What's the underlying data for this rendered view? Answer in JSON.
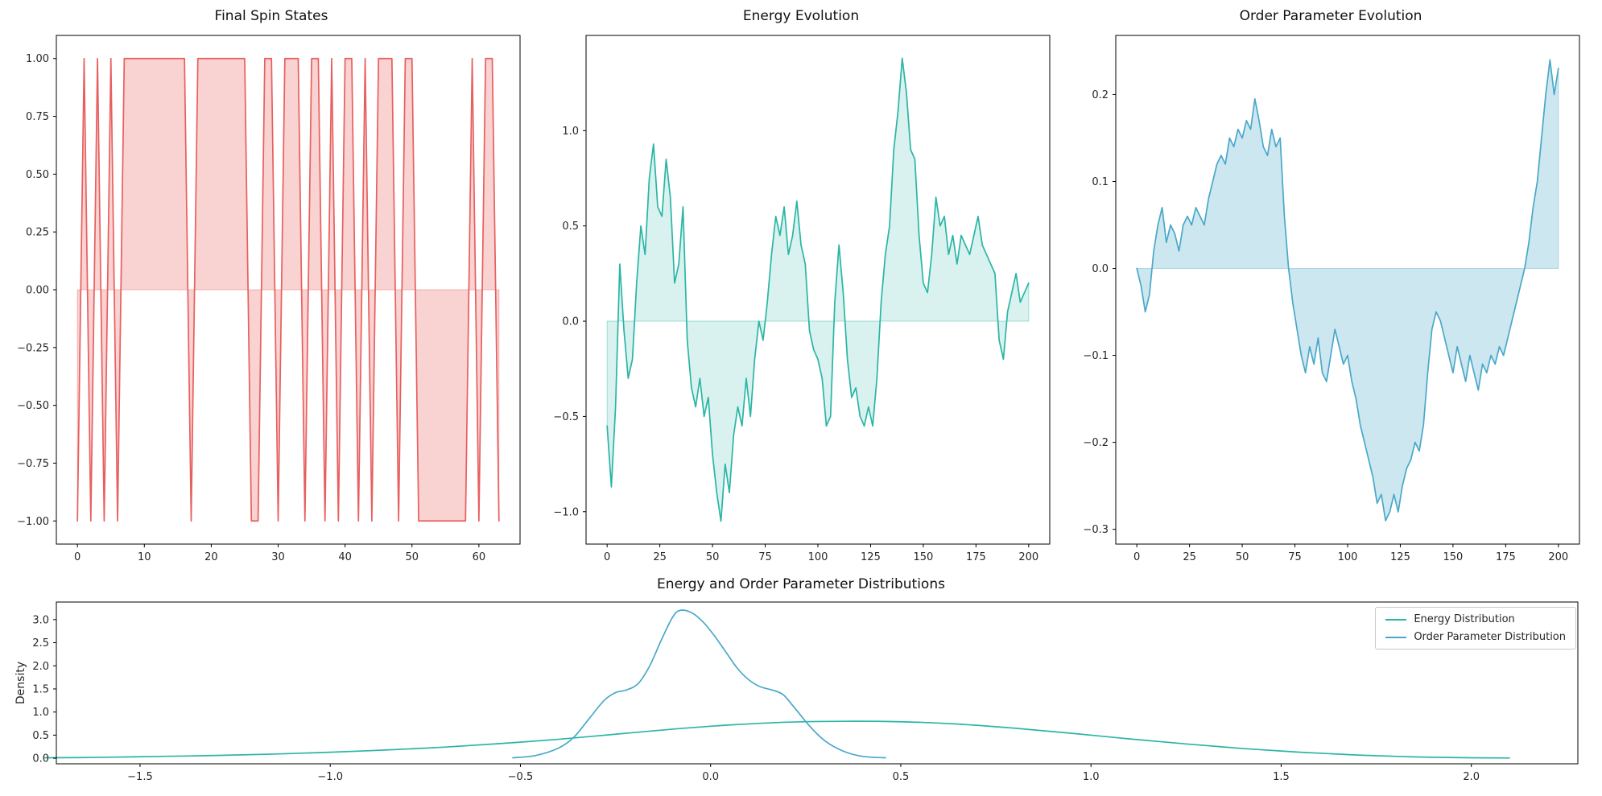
{
  "figure": {
    "background": "#ffffff",
    "text_color": "#262626",
    "spine_color": "#000000"
  },
  "chart_data": [
    {
      "id": "spin",
      "type": "line",
      "title": "Final Spin States",
      "xlim": [
        -3.15,
        66.15
      ],
      "ylim": [
        -1.1,
        1.1
      ],
      "xticks": [
        0,
        10,
        20,
        30,
        40,
        50,
        60
      ],
      "xtick_labels": [
        "0",
        "10",
        "20",
        "30",
        "40",
        "50",
        "60"
      ],
      "yticks": [
        1.0,
        0.75,
        0.5,
        0.25,
        0.0,
        -0.25,
        -0.5,
        -0.75,
        -1.0
      ],
      "ytick_labels": [
        "1.00",
        "0.75",
        "0.50",
        "0.25",
        "0.00",
        "−0.25",
        "−0.50",
        "−0.75",
        "−1.00"
      ],
      "grid": false,
      "series": [
        {
          "name": "spins",
          "color": "#e85f5f",
          "fill": true,
          "fill_alpha": 0.28,
          "x_range": [
            0,
            63,
            1
          ],
          "y": [
            -1,
            1,
            -1,
            1,
            -1,
            1,
            -1,
            1,
            1,
            1,
            1,
            1,
            1,
            1,
            1,
            1,
            1,
            -1,
            1,
            1,
            1,
            1,
            1,
            1,
            1,
            1,
            -1,
            -1,
            1,
            1,
            -1,
            1,
            1,
            1,
            -1,
            1,
            1,
            -1,
            1,
            -1,
            1,
            1,
            -1,
            1,
            -1,
            1,
            1,
            1,
            -1,
            1,
            1,
            -1,
            -1,
            -1,
            -1,
            -1,
            -1,
            -1,
            -1,
            1,
            -1,
            1,
            1,
            -1
          ]
        }
      ]
    },
    {
      "id": "energy",
      "type": "line",
      "title": "Energy Evolution",
      "xlim": [
        -10,
        210
      ],
      "ylim": [
        -1.17,
        1.5
      ],
      "xticks": [
        0,
        25,
        50,
        75,
        100,
        125,
        150,
        175,
        200
      ],
      "xtick_labels": [
        "0",
        "25",
        "50",
        "75",
        "100",
        "125",
        "150",
        "175",
        "200"
      ],
      "yticks": [
        1.0,
        0.5,
        0.0,
        -0.5,
        -1.0
      ],
      "ytick_labels": [
        "1.0",
        "0.5",
        "0.0",
        "−0.5",
        "−1.0"
      ],
      "grid": false,
      "series": [
        {
          "name": "energy",
          "color": "#2ab5a5",
          "fill": true,
          "fill_alpha": 0.18,
          "x_range": [
            0,
            200,
            2
          ],
          "y": [
            -0.55,
            -0.87,
            -0.45,
            0.3,
            -0.05,
            -0.3,
            -0.2,
            0.2,
            0.5,
            0.35,
            0.75,
            0.93,
            0.6,
            0.55,
            0.85,
            0.65,
            0.2,
            0.3,
            0.6,
            -0.1,
            -0.35,
            -0.45,
            -0.3,
            -0.5,
            -0.4,
            -0.7,
            -0.9,
            -1.05,
            -0.75,
            -0.9,
            -0.6,
            -0.45,
            -0.55,
            -0.3,
            -0.5,
            -0.2,
            0.0,
            -0.1,
            0.1,
            0.35,
            0.55,
            0.45,
            0.6,
            0.35,
            0.45,
            0.63,
            0.4,
            0.3,
            -0.05,
            -0.15,
            -0.2,
            -0.3,
            -0.55,
            -0.5,
            0.1,
            0.4,
            0.15,
            -0.2,
            -0.4,
            -0.35,
            -0.5,
            -0.55,
            -0.45,
            -0.55,
            -0.3,
            0.1,
            0.35,
            0.5,
            0.9,
            1.1,
            1.38,
            1.2,
            0.9,
            0.85,
            0.45,
            0.2,
            0.15,
            0.35,
            0.65,
            0.5,
            0.55,
            0.35,
            0.45,
            0.3,
            0.45,
            0.4,
            0.35,
            0.45,
            0.55,
            0.4,
            0.35,
            0.3,
            0.25,
            -0.1,
            -0.2,
            0.05,
            0.15,
            0.25,
            0.1,
            0.15,
            0.2
          ]
        }
      ]
    },
    {
      "id": "order",
      "type": "line",
      "title": "Order Parameter Evolution",
      "xlim": [
        -10,
        210
      ],
      "ylim": [
        -0.317,
        0.268
      ],
      "xticks": [
        0,
        25,
        50,
        75,
        100,
        125,
        150,
        175,
        200
      ],
      "xtick_labels": [
        "0",
        "25",
        "50",
        "75",
        "100",
        "125",
        "150",
        "175",
        "200"
      ],
      "yticks": [
        0.2,
        0.1,
        0.0,
        -0.1,
        -0.2,
        -0.3
      ],
      "ytick_labels": [
        "0.2",
        "0.1",
        "0.0",
        "−0.1",
        "−0.2",
        "−0.3"
      ],
      "grid": false,
      "series": [
        {
          "name": "order_parameter",
          "color": "#49a8c9",
          "fill": true,
          "fill_alpha": 0.28,
          "x_range": [
            0,
            200,
            2
          ],
          "y": [
            0.0,
            -0.02,
            -0.05,
            -0.03,
            0.02,
            0.05,
            0.07,
            0.03,
            0.05,
            0.04,
            0.02,
            0.05,
            0.06,
            0.05,
            0.07,
            0.06,
            0.05,
            0.08,
            0.1,
            0.12,
            0.13,
            0.12,
            0.15,
            0.14,
            0.16,
            0.15,
            0.17,
            0.16,
            0.195,
            0.17,
            0.14,
            0.13,
            0.16,
            0.14,
            0.15,
            0.06,
            0.0,
            -0.04,
            -0.07,
            -0.1,
            -0.12,
            -0.09,
            -0.11,
            -0.08,
            -0.12,
            -0.13,
            -0.1,
            -0.07,
            -0.09,
            -0.11,
            -0.1,
            -0.13,
            -0.15,
            -0.18,
            -0.2,
            -0.22,
            -0.24,
            -0.27,
            -0.26,
            -0.29,
            -0.28,
            -0.26,
            -0.28,
            -0.25,
            -0.23,
            -0.22,
            -0.2,
            -0.21,
            -0.18,
            -0.12,
            -0.07,
            -0.05,
            -0.06,
            -0.08,
            -0.1,
            -0.12,
            -0.09,
            -0.11,
            -0.13,
            -0.1,
            -0.12,
            -0.14,
            -0.11,
            -0.12,
            -0.1,
            -0.11,
            -0.09,
            -0.1,
            -0.08,
            -0.06,
            -0.04,
            -0.02,
            0.0,
            0.03,
            0.07,
            0.1,
            0.15,
            0.2,
            0.24,
            0.2,
            0.23
          ]
        }
      ]
    },
    {
      "id": "distributions",
      "type": "line",
      "title": "Energy and Order Parameter Distributions",
      "ylabel": "Density",
      "xlim": [
        -1.72,
        2.28
      ],
      "ylim": [
        -0.12,
        3.38
      ],
      "xticks": [
        -1.5,
        -1.0,
        -0.5,
        0.0,
        0.5,
        1.0,
        1.5,
        2.0
      ],
      "xtick_labels": [
        "−1.5",
        "−1.0",
        "−0.5",
        "0.0",
        "0.5",
        "1.0",
        "1.5",
        "2.0"
      ],
      "yticks": [
        0.0,
        0.5,
        1.0,
        1.5,
        2.0,
        2.5,
        3.0
      ],
      "ytick_labels": [
        "0.0",
        "0.5",
        "1.0",
        "1.5",
        "2.0",
        "2.5",
        "3.0"
      ],
      "grid": false,
      "legend_position": "upper right",
      "series": [
        {
          "name": "Energy Distribution",
          "color": "#2ab5a5",
          "fill": false,
          "smooth": true,
          "x": [
            -1.75,
            -1.6,
            -1.45,
            -1.3,
            -1.15,
            -1.0,
            -0.85,
            -0.7,
            -0.55,
            -0.4,
            -0.25,
            -0.1,
            0.05,
            0.2,
            0.35,
            0.5,
            0.65,
            0.8,
            0.95,
            1.1,
            1.25,
            1.4,
            1.55,
            1.7,
            1.85,
            2.0,
            2.1
          ],
          "y": [
            0.01,
            0.02,
            0.04,
            0.06,
            0.09,
            0.13,
            0.18,
            0.24,
            0.32,
            0.41,
            0.52,
            0.63,
            0.72,
            0.78,
            0.8,
            0.79,
            0.74,
            0.65,
            0.54,
            0.42,
            0.31,
            0.21,
            0.13,
            0.07,
            0.03,
            0.01,
            0.005
          ]
        },
        {
          "name": "Order Parameter Distribution",
          "color": "#49a8c9",
          "fill": false,
          "smooth": true,
          "x": [
            -0.52,
            -0.46,
            -0.4,
            -0.36,
            -0.32,
            -0.28,
            -0.25,
            -0.22,
            -0.19,
            -0.16,
            -0.13,
            -0.1,
            -0.08,
            -0.05,
            -0.02,
            0.01,
            0.04,
            0.07,
            0.1,
            0.13,
            0.16,
            0.19,
            0.22,
            0.26,
            0.3,
            0.35,
            0.4,
            0.46
          ],
          "y": [
            0.01,
            0.06,
            0.22,
            0.45,
            0.85,
            1.25,
            1.42,
            1.48,
            1.62,
            2.0,
            2.55,
            3.05,
            3.2,
            3.15,
            2.95,
            2.65,
            2.3,
            1.95,
            1.7,
            1.55,
            1.48,
            1.38,
            1.1,
            0.7,
            0.38,
            0.15,
            0.04,
            0.01
          ]
        }
      ]
    }
  ]
}
